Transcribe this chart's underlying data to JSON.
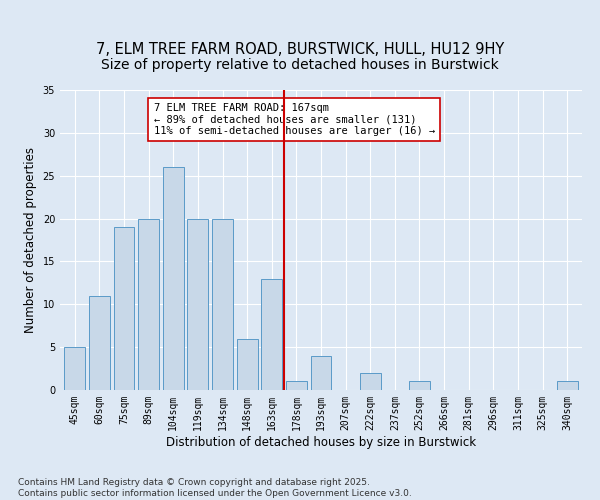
{
  "title": "7, ELM TREE FARM ROAD, BURSTWICK, HULL, HU12 9HY",
  "subtitle": "Size of property relative to detached houses in Burstwick",
  "xlabel": "Distribution of detached houses by size in Burstwick",
  "ylabel": "Number of detached properties",
  "categories": [
    "45sqm",
    "60sqm",
    "75sqm",
    "89sqm",
    "104sqm",
    "119sqm",
    "134sqm",
    "148sqm",
    "163sqm",
    "178sqm",
    "193sqm",
    "207sqm",
    "222sqm",
    "237sqm",
    "252sqm",
    "266sqm",
    "281sqm",
    "296sqm",
    "311sqm",
    "325sqm",
    "340sqm"
  ],
  "values": [
    5,
    11,
    19,
    20,
    26,
    20,
    20,
    6,
    13,
    1,
    4,
    0,
    2,
    0,
    1,
    0,
    0,
    0,
    0,
    0,
    1
  ],
  "bar_color": "#c8d8e8",
  "bar_edge_color": "#5a9ac8",
  "vline_x": 8.5,
  "vline_color": "#cc0000",
  "annotation_text": "7 ELM TREE FARM ROAD: 167sqm\n← 89% of detached houses are smaller (131)\n11% of semi-detached houses are larger (16) →",
  "annotation_box_color": "#ffffff",
  "annotation_box_edge_color": "#cc0000",
  "ylim": [
    0,
    35
  ],
  "yticks": [
    0,
    5,
    10,
    15,
    20,
    25,
    30,
    35
  ],
  "bg_color": "#dde8f4",
  "grid_color": "#ffffff",
  "footer": "Contains HM Land Registry data © Crown copyright and database right 2025.\nContains public sector information licensed under the Open Government Licence v3.0.",
  "title_fontsize": 10.5,
  "xlabel_fontsize": 8.5,
  "ylabel_fontsize": 8.5,
  "tick_fontsize": 7,
  "annot_fontsize": 7.5,
  "footer_fontsize": 6.5
}
